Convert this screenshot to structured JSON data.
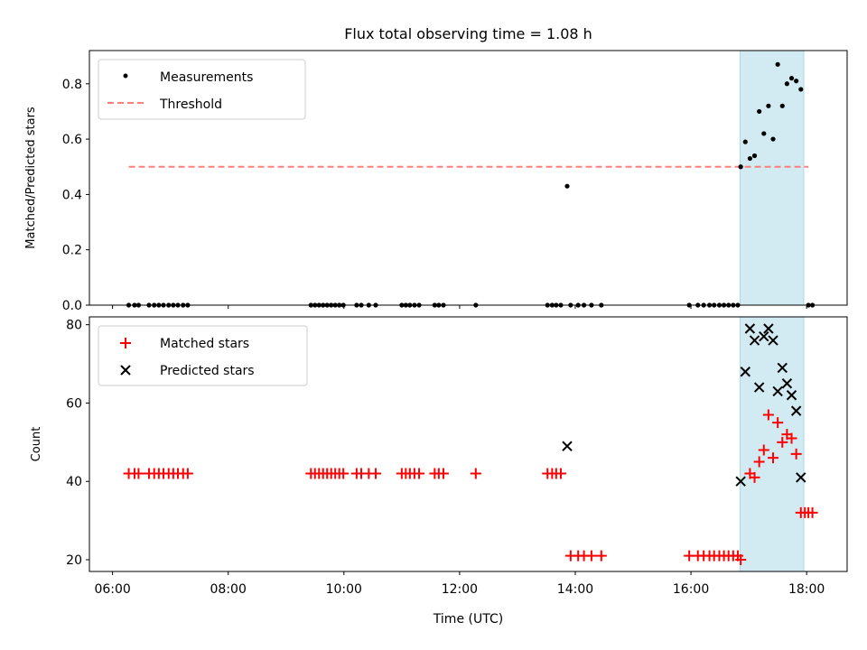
{
  "title": "Flux total observing time = 1.08 h",
  "colors": {
    "measurement": "#000000",
    "threshold": "#ff7f7f",
    "matched": "#ff0000",
    "predicted": "#000000",
    "highlight": "#add8e6"
  },
  "chart_data": [
    {
      "type": "scatter",
      "ylabel": "Matched/Predicted stars",
      "xlabel": "",
      "x_unit": "hours UTC",
      "xlim": [
        5.6,
        18.7
      ],
      "ylim": [
        0.0,
        0.92
      ],
      "yticks": [
        0.0,
        0.2,
        0.4,
        0.6,
        0.8
      ],
      "ytick_labels": [
        "0.0",
        "0.2",
        "0.4",
        "0.6",
        "0.8"
      ],
      "highlight_span": [
        16.85,
        17.95
      ],
      "legend": [
        {
          "label": "Measurements",
          "marker": "dot"
        },
        {
          "label": "Threshold",
          "marker": "dashed-line"
        }
      ],
      "legend_position": "upper left",
      "threshold": {
        "y": 0.5,
        "x_range": [
          6.28,
          18.03
        ]
      },
      "series": [
        {
          "name": "Measurements",
          "x": [
            6.28,
            6.38,
            6.45,
            6.63,
            6.72,
            6.8,
            6.88,
            6.97,
            7.05,
            7.13,
            7.22,
            7.3,
            9.43,
            9.5,
            9.57,
            9.64,
            9.71,
            9.78,
            9.85,
            9.92,
            9.99,
            10.22,
            10.3,
            10.43,
            10.55,
            11.0,
            11.07,
            11.14,
            11.22,
            11.3,
            11.57,
            11.64,
            11.72,
            12.28,
            13.52,
            13.6,
            13.67,
            13.75,
            13.86,
            13.92,
            14.05,
            14.15,
            14.28,
            14.45,
            15.97,
            16.12,
            16.22,
            16.32,
            16.4,
            16.49,
            16.57,
            16.65,
            16.73,
            16.81,
            16.86,
            16.94,
            17.02,
            17.1,
            17.18,
            17.26,
            17.34,
            17.42,
            17.5,
            17.58,
            17.66,
            17.74,
            17.82,
            17.9,
            18.03,
            18.1
          ],
          "y": [
            0,
            0,
            0,
            0,
            0,
            0,
            0,
            0,
            0,
            0,
            0,
            0,
            0,
            0,
            0,
            0,
            0,
            0,
            0,
            0,
            0,
            0,
            0,
            0,
            0,
            0,
            0,
            0,
            0,
            0,
            0,
            0,
            0,
            0,
            0,
            0,
            0,
            0,
            0.43,
            0,
            0,
            0,
            0,
            0,
            0,
            0,
            0,
            0,
            0,
            0,
            0,
            0,
            0,
            0,
            0.5,
            0.59,
            0.53,
            0.54,
            0.7,
            0.62,
            0.72,
            0.6,
            0.87,
            0.72,
            0.8,
            0.82,
            0.81,
            0.78,
            0,
            0
          ]
        }
      ]
    },
    {
      "type": "scatter",
      "ylabel": "Count",
      "xlabel": "Time (UTC)",
      "x_unit": "hours UTC",
      "xlim": [
        5.6,
        18.7
      ],
      "ylim": [
        17,
        82
      ],
      "xticks": [
        6,
        8,
        10,
        12,
        14,
        16,
        18
      ],
      "xtick_labels": [
        "06:00",
        "08:00",
        "10:00",
        "12:00",
        "14:00",
        "16:00",
        "18:00"
      ],
      "yticks": [
        20,
        40,
        60,
        80
      ],
      "ytick_labels": [
        "20",
        "40",
        "60",
        "80"
      ],
      "highlight_span": [
        16.85,
        17.95
      ],
      "legend": [
        {
          "label": "Matched stars",
          "marker": "plus"
        },
        {
          "label": "Predicted stars",
          "marker": "x"
        }
      ],
      "legend_position": "upper left",
      "series": [
        {
          "name": "Matched stars",
          "x": [
            6.28,
            6.38,
            6.45,
            6.63,
            6.72,
            6.8,
            6.88,
            6.97,
            7.05,
            7.13,
            7.22,
            7.3,
            9.43,
            9.5,
            9.57,
            9.64,
            9.71,
            9.78,
            9.85,
            9.92,
            9.99,
            10.22,
            10.3,
            10.43,
            10.55,
            11.0,
            11.07,
            11.14,
            11.22,
            11.3,
            11.57,
            11.64,
            11.72,
            12.28,
            13.52,
            13.6,
            13.67,
            13.75,
            13.92,
            14.05,
            14.15,
            14.28,
            14.45,
            15.97,
            16.12,
            16.22,
            16.32,
            16.4,
            16.49,
            16.57,
            16.65,
            16.73,
            16.81,
            16.86,
            17.02,
            17.1,
            17.18,
            17.26,
            17.34,
            17.42,
            17.5,
            17.58,
            17.66,
            17.74,
            17.82,
            17.9,
            17.97,
            18.03,
            18.1
          ],
          "y": [
            42,
            42,
            42,
            42,
            42,
            42,
            42,
            42,
            42,
            42,
            42,
            42,
            42,
            42,
            42,
            42,
            42,
            42,
            42,
            42,
            42,
            42,
            42,
            42,
            42,
            42,
            42,
            42,
            42,
            42,
            42,
            42,
            42,
            42,
            42,
            42,
            42,
            42,
            21,
            21,
            21,
            21,
            21,
            21,
            21,
            21,
            21,
            21,
            21,
            21,
            21,
            21,
            21,
            20,
            42,
            41,
            45,
            48,
            57,
            46,
            55,
            50,
            52,
            51,
            47,
            32,
            32,
            32,
            32
          ]
        },
        {
          "name": "Predicted stars",
          "x": [
            13.86,
            16.86,
            16.94,
            17.02,
            17.1,
            17.18,
            17.26,
            17.34,
            17.42,
            17.5,
            17.58,
            17.66,
            17.74,
            17.82,
            17.9
          ],
          "y": [
            49,
            40,
            68,
            79,
            76,
            64,
            77,
            79,
            76,
            63,
            69,
            65,
            62,
            58,
            41
          ]
        }
      ]
    }
  ]
}
